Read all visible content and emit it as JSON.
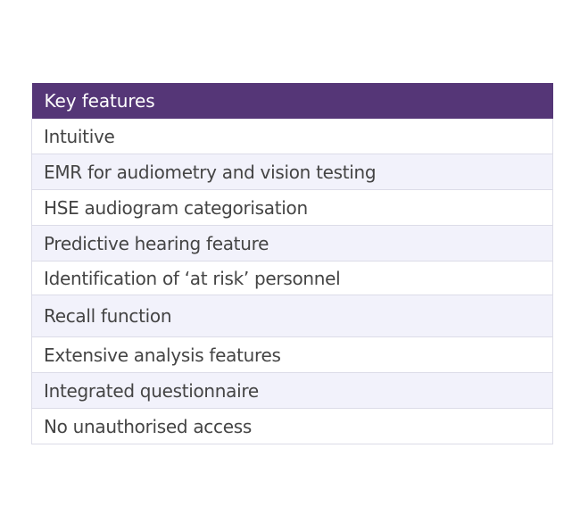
{
  "table": {
    "header": "Key features",
    "rows": [
      "Intuitive",
      "EMR for audiometry and vision testing",
      "HSE audiogram categorisation",
      "Predictive hearing feature",
      "Identification of ‘at risk’ personnel",
      "Recall function",
      "Extensive analysis features",
      "Integrated questionnaire",
      "No unauthorised access"
    ],
    "colors": {
      "header_background": "#553677",
      "header_text": "#ffffff",
      "row_alt_background": "#f2f2fb",
      "row_text": "#444444"
    }
  }
}
